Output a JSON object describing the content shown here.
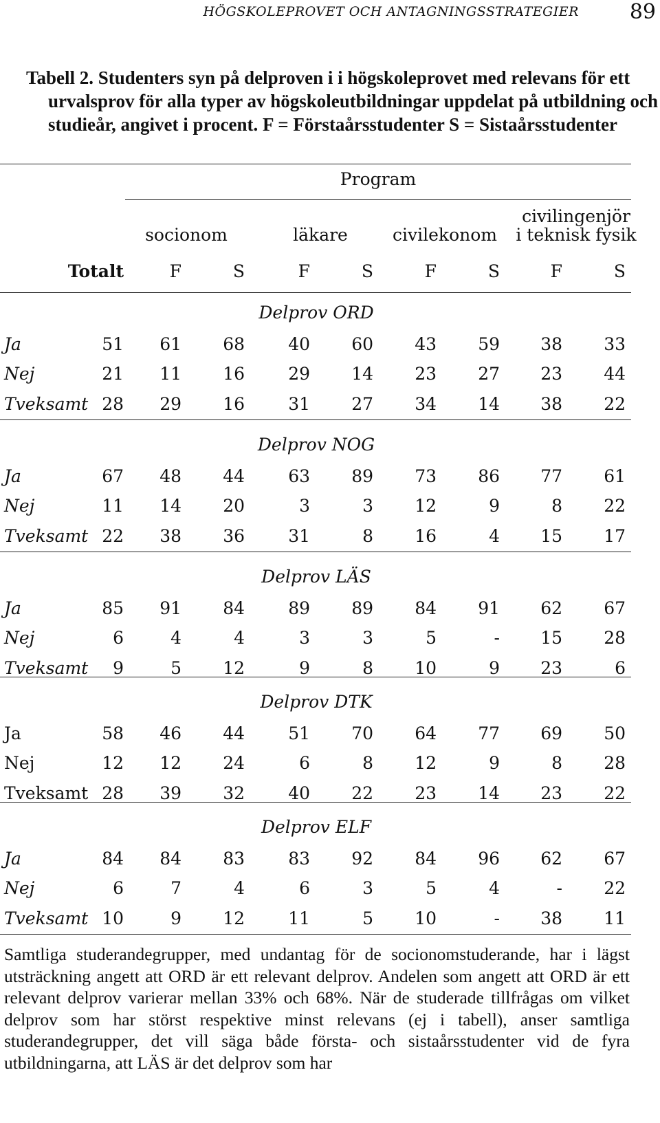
{
  "header": {
    "running_title": "HÖGSKOLEPROVET OCH ANTAGNINGSSTRATEGIER",
    "page_number": "89"
  },
  "table": {
    "caption": "Tabell 2. Studenters syn på delproven i i högskoleprovet med relevans för ett urvalsprov för alla typer av högskoleutbildningar uppdelat på utbildning och studieår, angivet i procent. F = Förstaårsstudenter S = Sistaårsstudenter",
    "program_label": "Program",
    "programs": [
      "socionom",
      "läkare",
      "civilekonom"
    ],
    "program_last_line1": "civilingenjör",
    "program_last_line2": "i teknisk fysik",
    "columns": [
      "Totalt",
      "F",
      "S",
      "F",
      "S",
      "F",
      "S",
      "F",
      "S"
    ],
    "sections": [
      {
        "title": "Delprov ORD",
        "rows": [
          {
            "label": "Ja",
            "values": [
              "51",
              "61",
              "68",
              "40",
              "60",
              "43",
              "59",
              "38",
              "33"
            ]
          },
          {
            "label": "Nej",
            "values": [
              "21",
              "11",
              "16",
              "29",
              "14",
              "23",
              "27",
              "23",
              "44"
            ]
          },
          {
            "label": "Tveksamt",
            "values": [
              "28",
              "29",
              "16",
              "31",
              "27",
              "34",
              "14",
              "38",
              "22"
            ]
          }
        ]
      },
      {
        "title": "Delprov NOG",
        "rows": [
          {
            "label": "Ja",
            "values": [
              "67",
              "48",
              "44",
              "63",
              "89",
              "73",
              "86",
              "77",
              "61"
            ]
          },
          {
            "label": "Nej",
            "values": [
              "11",
              "14",
              "20",
              "3",
              "3",
              "12",
              "9",
              "8",
              "22"
            ]
          },
          {
            "label": "Tveksamt",
            "values": [
              "22",
              "38",
              "36",
              "31",
              "8",
              "16",
              "4",
              "15",
              "17"
            ]
          }
        ]
      },
      {
        "title": "Delprov LÄS",
        "rows": [
          {
            "label": "Ja",
            "values": [
              "85",
              "91",
              "84",
              "89",
              "89",
              "84",
              "91",
              "62",
              "67"
            ]
          },
          {
            "label": "Nej",
            "values": [
              "6",
              "4",
              "4",
              "3",
              "3",
              "5",
              "-",
              "15",
              "28"
            ]
          },
          {
            "label": "Tveksamt",
            "values": [
              "9",
              "5",
              "12",
              "9",
              "8",
              "10",
              "9",
              "23",
              "6"
            ]
          }
        ]
      },
      {
        "title": "Delprov DTK",
        "rows": [
          {
            "label": "Ja",
            "values": [
              "58",
              "46",
              "44",
              "51",
              "70",
              "64",
              "77",
              "69",
              "50"
            ]
          },
          {
            "label": "Nej",
            "values": [
              "12",
              "12",
              "24",
              "6",
              "8",
              "12",
              "9",
              "8",
              "28"
            ]
          },
          {
            "label": "Tveksamt",
            "values": [
              "28",
              "39",
              "32",
              "40",
              "22",
              "23",
              "14",
              "23",
              "22"
            ]
          }
        ]
      },
      {
        "title": "Delprov ELF",
        "rows": [
          {
            "label": "Ja",
            "values": [
              "84",
              "84",
              "83",
              "83",
              "92",
              "84",
              "96",
              "62",
              "67"
            ]
          },
          {
            "label": "Nej",
            "values": [
              "6",
              "7",
              "4",
              "6",
              "3",
              "5",
              "4",
              "-",
              "22"
            ]
          },
          {
            "label": "Tveksamt",
            "values": [
              "10",
              "9",
              "12",
              "11",
              "5",
              "10",
              "-",
              "38",
              "11"
            ]
          }
        ]
      }
    ]
  },
  "body_text": "Samtliga studerandegrupper, med undantag för de socionomstuderande, har i lägst utsträckning angett att ORD är ett relevant delprov. Andelen som angett att ORD är ett relevant delprov varierar mellan 33% och 68%. När de studerade tillfrågas om vilket delprov som har störst respektive minst relevans (ej i tabell), anser samtliga studerandegrupper, det vill säga både första- och sistaårsstudenter vid de fyra utbildningarna, att LÄS är det delprov som har"
}
